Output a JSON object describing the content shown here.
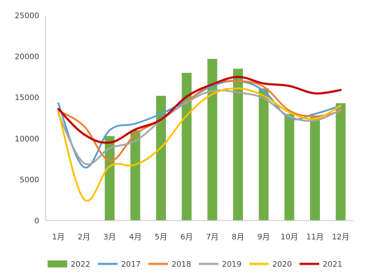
{
  "chart_data": {
    "type": "bar",
    "categories": [
      "1月",
      "2月",
      "3月",
      "4月",
      "5月",
      "6月",
      "7月",
      "8月",
      "9月",
      "10月",
      "11月",
      "12月"
    ],
    "ylim": [
      0,
      25000
    ],
    "yticks": [
      0,
      5000,
      10000,
      15000,
      20000,
      25000
    ],
    "grid": false,
    "legend_position": "bottom",
    "bars": {
      "name": "2022",
      "color": "#70AD47",
      "values": [
        null,
        null,
        10300,
        11000,
        15200,
        18000,
        19700,
        18500,
        16100,
        13000,
        12600,
        14300
      ]
    },
    "series": [
      {
        "name": "2017",
        "color": "#5B9BD5",
        "values": [
          14300,
          6500,
          11000,
          11800,
          13000,
          14600,
          16400,
          17000,
          15800,
          12500,
          13000,
          14000
        ]
      },
      {
        "name": "2018",
        "color": "#ED7D31",
        "values": [
          13400,
          11500,
          7300,
          10500,
          12300,
          14500,
          16600,
          17000,
          16300,
          13400,
          12700,
          13300
        ]
      },
      {
        "name": "2019",
        "color": "#A5A5A5",
        "values": [
          13000,
          7000,
          8800,
          9700,
          12200,
          14400,
          15800,
          15600,
          14900,
          12700,
          12200,
          13500
        ]
      },
      {
        "name": "2020",
        "color": "#FFC000",
        "values": [
          13300,
          2600,
          6600,
          6800,
          8900,
          12800,
          15400,
          16100,
          15200,
          13200,
          12400,
          14000
        ]
      },
      {
        "name": "2021",
        "color": "#C00000",
        "values": [
          13600,
          10500,
          9500,
          11100,
          12300,
          15100,
          16600,
          17500,
          16700,
          16400,
          15500,
          15900
        ]
      }
    ]
  }
}
